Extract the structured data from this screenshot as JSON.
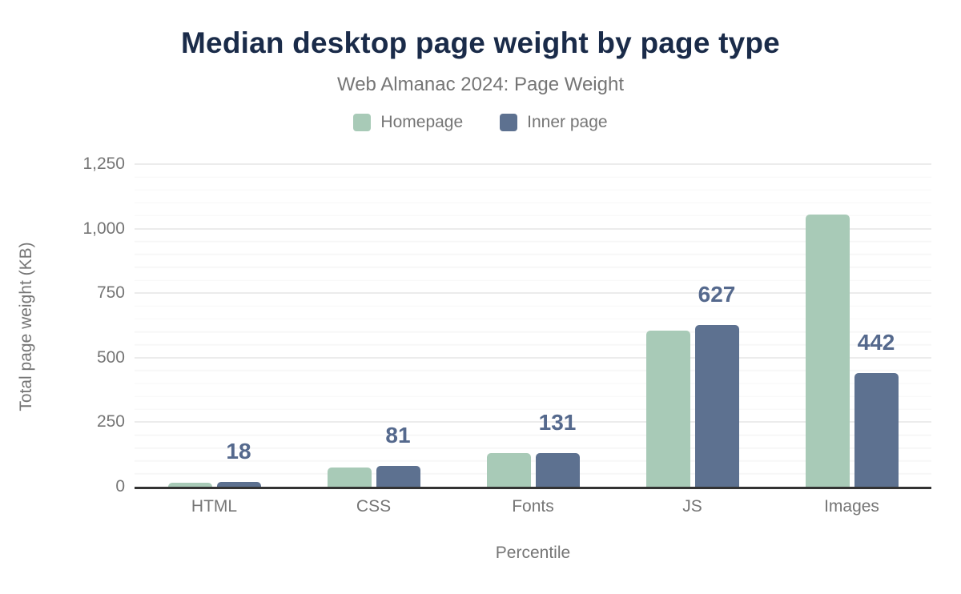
{
  "chart_data": {
    "type": "bar",
    "title": "Median desktop page weight by page type",
    "subtitle": "Web Almanac 2024: Page Weight",
    "xlabel": "Percentile",
    "ylabel": "Total page weight (KB)",
    "categories": [
      "HTML",
      "CSS",
      "Fonts",
      "JS",
      "Images"
    ],
    "series": [
      {
        "name": "Homepage",
        "color": "#a8cab7",
        "values": [
          17,
          75,
          130,
          606,
          1055
        ],
        "labels_visible": false
      },
      {
        "name": "Inner page",
        "color": "#5d7190",
        "values": [
          18,
          81,
          131,
          627,
          442
        ],
        "labels_visible": true,
        "data_labels": [
          "18",
          "81",
          "131",
          "627",
          "442"
        ]
      }
    ],
    "ylim": [
      0,
      1250
    ],
    "yticks": [
      {
        "value": 0,
        "label": "0"
      },
      {
        "value": 250,
        "label": "250"
      },
      {
        "value": 500,
        "label": "500"
      },
      {
        "value": 750,
        "label": "750"
      },
      {
        "value": 1000,
        "label": "1,000"
      },
      {
        "value": 1250,
        "label": "1,250"
      }
    ],
    "grid": {
      "major_interval": 250,
      "minor_interval": 50,
      "major_color": "#ececec",
      "minor_color": "#f7f7f7"
    },
    "legend_position": "top",
    "colors": {
      "title": "#1a2b49",
      "text": "#757575",
      "data_label": "#55698d",
      "axis_line": "#333333"
    }
  }
}
